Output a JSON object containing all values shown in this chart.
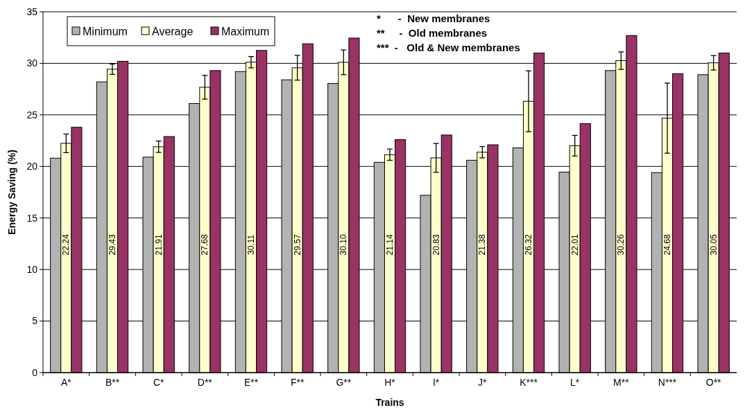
{
  "chart_data": {
    "type": "bar",
    "xlabel": "Trains",
    "ylabel": "Energy Saving (%)",
    "categories": [
      "A*",
      "B**",
      "C*",
      "D**",
      "E**",
      "F**",
      "G**",
      "H*",
      "I*",
      "J*",
      "K***",
      "L*",
      "M**",
      "N***",
      "O**"
    ],
    "series": [
      {
        "name": "Minimum",
        "color": "#b2b2b2",
        "values": [
          20.8,
          28.2,
          20.9,
          26.1,
          29.2,
          28.4,
          28.05,
          20.4,
          17.2,
          20.6,
          21.8,
          19.45,
          29.3,
          19.4,
          28.9
        ]
      },
      {
        "name": "Average",
        "color": "#ffffcc",
        "values": [
          22.24,
          29.43,
          21.91,
          27.68,
          30.11,
          29.57,
          30.1,
          21.14,
          20.83,
          21.38,
          26.32,
          22.01,
          30.26,
          24.68,
          30.05
        ],
        "errors": [
          0.9,
          0.5,
          0.55,
          1.15,
          0.55,
          1.2,
          1.2,
          0.55,
          1.4,
          0.55,
          2.95,
          1.0,
          0.85,
          3.4,
          0.7
        ],
        "value_labels": [
          "22.24",
          "29.43",
          "21.91",
          "27.68",
          "30.11",
          "29.57",
          "30.10",
          "21.14",
          "20.83",
          "21.38",
          "26.32",
          "22.01",
          "30.26",
          "24.68",
          "30.05"
        ]
      },
      {
        "name": "Maximum",
        "color": "#993366",
        "values": [
          23.8,
          30.2,
          22.9,
          29.3,
          31.25,
          31.9,
          32.45,
          22.6,
          23.05,
          22.1,
          31.0,
          24.15,
          32.7,
          29.0,
          31.0
        ]
      }
    ],
    "ylim": [
      0,
      35
    ],
    "yticks": [
      0,
      5,
      10,
      15,
      20,
      25,
      30,
      35
    ],
    "grid": "y",
    "legend": "top left",
    "annotations": [
      "*      -  New membranes",
      "**     -  Old membranes",
      "***  -   Old & New membranes"
    ]
  }
}
